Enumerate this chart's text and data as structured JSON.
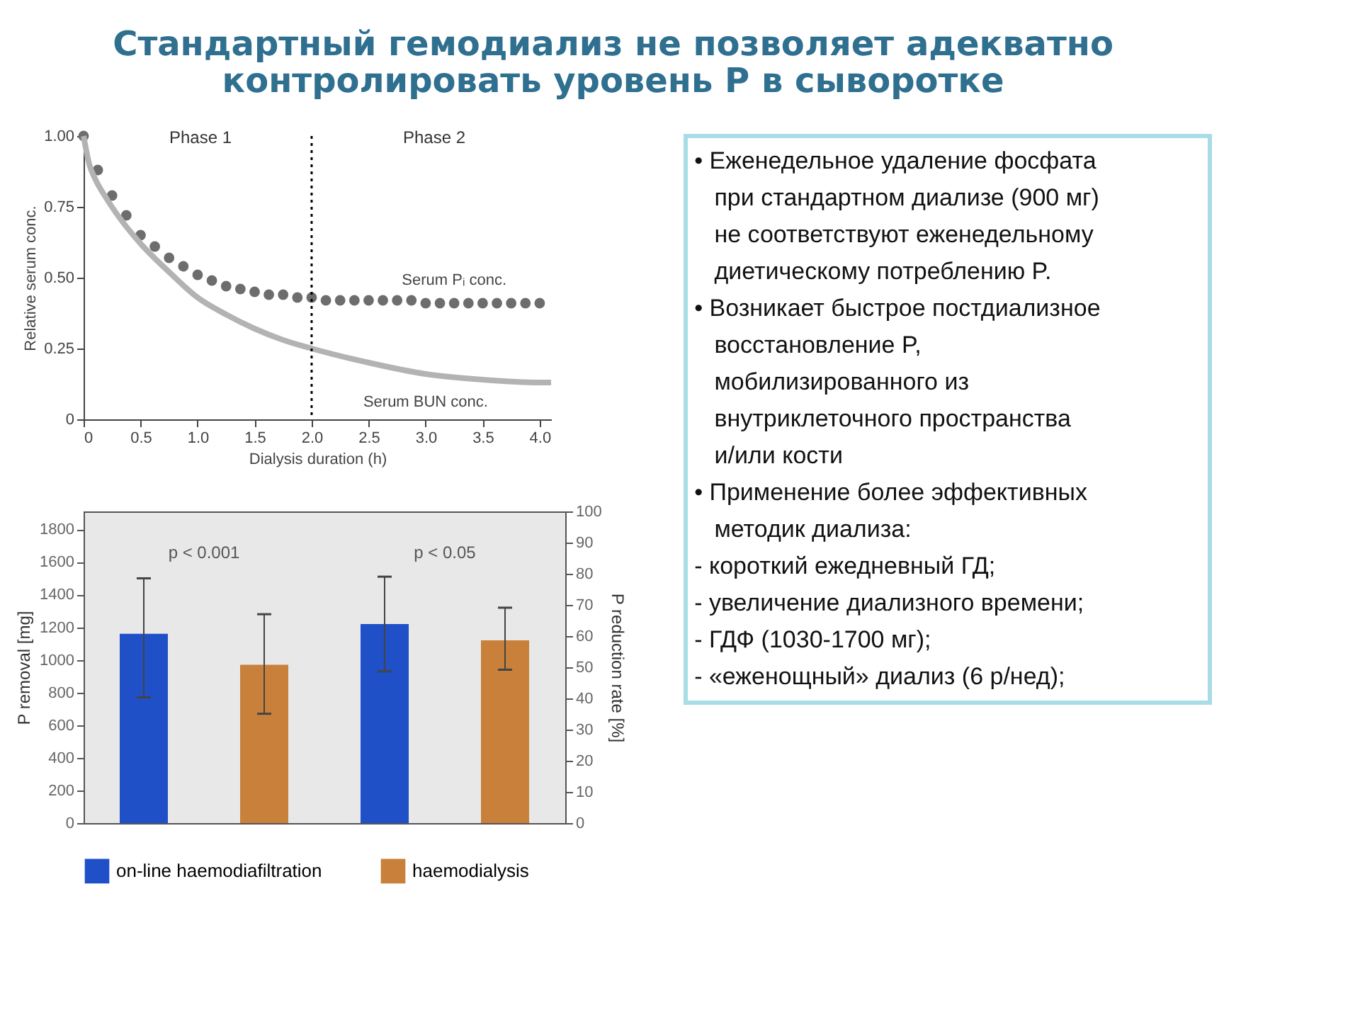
{
  "chart_data": [
    {
      "type": "line",
      "title": "Стандартный гемодиализ не позволяет адекватно контролировать уровень P в сыворотке",
      "xlabel": "Dialysis duration (h)",
      "ylabel": "Relative serum conc.",
      "series": [
        {
          "name": "Serum Pᵢ conc.",
          "type": "scatter",
          "marker": "circle",
          "color": "#6d6d6d",
          "x": [
            0,
            0.125,
            0.25,
            0.375,
            0.5,
            0.625,
            0.75,
            0.875,
            1.0,
            1.125,
            1.25,
            1.375,
            1.5,
            1.625,
            1.75,
            1.875,
            2.0,
            2.125,
            2.25,
            2.375,
            2.5,
            2.625,
            2.75,
            2.875,
            3.0,
            3.125,
            3.25,
            3.375,
            3.5,
            3.625,
            3.75,
            3.875,
            4.0
          ],
          "values": [
            1.0,
            0.88,
            0.79,
            0.72,
            0.65,
            0.61,
            0.57,
            0.54,
            0.51,
            0.49,
            0.47,
            0.46,
            0.45,
            0.44,
            0.44,
            0.43,
            0.43,
            0.42,
            0.42,
            0.42,
            0.42,
            0.42,
            0.42,
            0.42,
            0.41,
            0.41,
            0.41,
            0.41,
            0.41,
            0.41,
            0.41,
            0.41,
            0.41
          ]
        },
        {
          "name": "Serum BUN conc.",
          "type": "line",
          "color": "#b3b3b3",
          "x": [
            0,
            0.05,
            0.1,
            0.2,
            0.3,
            0.5,
            0.75,
            1.0,
            1.25,
            1.5,
            1.75,
            2.0,
            2.5,
            3.0,
            3.5,
            4.0,
            4.1
          ],
          "values": [
            1.0,
            0.9,
            0.85,
            0.78,
            0.72,
            0.62,
            0.52,
            0.43,
            0.37,
            0.32,
            0.28,
            0.25,
            0.2,
            0.16,
            0.14,
            0.13,
            0.13
          ]
        }
      ],
      "xlim": [
        0,
        4.1
      ],
      "ylim": [
        0,
        1.0
      ],
      "xticks": [
        0,
        0.5,
        {
          "value": 1,
          "label": "1.0"
        },
        1.5,
        {
          "value": 2,
          "label": "2.0"
        },
        2.5,
        {
          "value": 3,
          "label": "3.0"
        },
        3.5,
        {
          "value": 4,
          "label": "4.0"
        }
      ],
      "yticks": [
        0,
        0.25,
        {
          "value": 0.5,
          "label": "0.50"
        },
        0.75,
        {
          "value": 1,
          "label": "1.00"
        }
      ],
      "ref_lines": [
        {
          "axis": "x",
          "value": 2.0,
          "color": "#000000",
          "line_style": "dotted"
        }
      ],
      "annotations": [
        "Phase 1",
        "Phase 2"
      ],
      "grid": false,
      "legend": false
    },
    {
      "type": "bar",
      "ylabel": "P removal [mg]",
      "y2label": "P reduction rate [%]",
      "categories": [
        null,
        null
      ],
      "series": [
        {
          "name": "on-line haemodiafiltration",
          "color": "#2050c8",
          "values": [
            1160,
            1220
          ],
          "errors": [
            [
              770,
              1500
            ],
            [
              930,
              1510
            ]
          ]
        },
        {
          "name": "haemodialysis",
          "color": "#c8803a",
          "values": [
            970,
            1120
          ],
          "errors": [
            [
              670,
              1280
            ],
            [
              940,
              1320
            ]
          ]
        }
      ],
      "ylim": [
        0,
        1910
      ],
      "yticks": [
        0,
        200,
        400,
        600,
        800,
        1000,
        1200,
        1400,
        1600,
        1800
      ],
      "y2lim": [
        0,
        100
      ],
      "y2ticks": [
        0,
        10,
        20,
        30,
        40,
        50,
        60,
        70,
        80,
        90,
        100
      ],
      "annotations": [
        "p < 0.001",
        "p < 0.05"
      ],
      "grid": false,
      "legend": "bottom"
    },
    {
      "type": "other",
      "annotations": [
        "• Еженедельное удаление фосфата при стандартном диализе (900 мг) не соответствуют еженедельному диетическому потреблению P.",
        "• Возникает быстрое постдиализное восстановление P, мобилизированного из внутриклеточного пространства и/или кости",
        "• Применение более эффективных методик диализа:",
        "- короткий ежедневный ГД;",
        "- увеличение диализного времени;",
        "- ГДФ (1030-1700 мг);",
        "- «еженощный» диализ (6 р/нед);"
      ]
    }
  ]
}
